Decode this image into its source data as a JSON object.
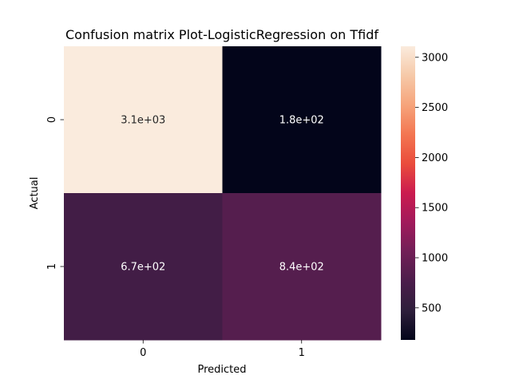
{
  "chart_data": {
    "type": "heatmap",
    "title": "Confusion matrix Plot-LogisticRegression on Tfidf",
    "xlabel": "Predicted",
    "ylabel": "Actual",
    "x_categories": [
      "0",
      "1"
    ],
    "y_categories": [
      "0",
      "1"
    ],
    "values": [
      [
        3110,
        180
      ],
      [
        670,
        840
      ]
    ],
    "annotations": [
      [
        "3.1e+03",
        "1.8e+02"
      ],
      [
        "6.7e+02",
        "8.4e+02"
      ]
    ],
    "colorbar": {
      "range": [
        180,
        3110
      ],
      "ticks": [
        500,
        1000,
        1500,
        2000,
        2500,
        3000
      ],
      "tick_labels": [
        "500",
        "1000",
        "1500",
        "2000",
        "2500",
        "3000"
      ],
      "colormap": "rocket",
      "stops": [
        "#03051a",
        "#2e1e3b",
        "#4c1d4b",
        "#711f57",
        "#a11a5b",
        "#cb1b4f",
        "#ea4c3c",
        "#f37651",
        "#f6a47b",
        "#f6c9a8",
        "#faebdd"
      ]
    },
    "annotation_colors": {
      "light": "#ffffff",
      "dark": "#262626"
    }
  }
}
